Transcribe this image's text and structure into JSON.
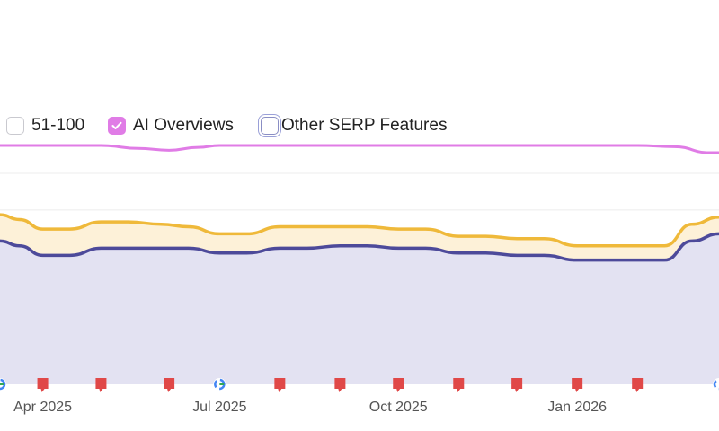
{
  "legend": {
    "items": [
      {
        "label": "51-100",
        "checked": false
      },
      {
        "label": "AI Overviews",
        "checked": true
      },
      {
        "label": "Other SERP Features",
        "checked": false,
        "focused": true
      }
    ]
  },
  "colors": {
    "top_line": "#efb93a",
    "top_fill": "#fdf1d8",
    "mid_line": "#4d4a9a",
    "mid_fill": "#e3e2f2",
    "ai_line": "#e07ce6",
    "gridline": "#ececec",
    "marker": "#e04848"
  },
  "chart_data": {
    "type": "area",
    "x_ticks": [
      "Apr 2025",
      "Jul 2025",
      "Oct 2025",
      "Jan 2026"
    ],
    "x_tick_dates": [
      "2025-04-01",
      "2025-07-01",
      "2025-10-01",
      "2026-01-01"
    ],
    "x_range": [
      "2025-03-10",
      "2026-03-15"
    ],
    "y_range": [
      0,
      100
    ],
    "gridlines": [
      27,
      47,
      65
    ],
    "series": [
      {
        "key": "top",
        "x": [
          "2025-03-10",
          "2025-03-20",
          "2025-04-01",
          "2025-04-15",
          "2025-05-01",
          "2025-05-15",
          "2025-06-01",
          "2025-06-15",
          "2025-07-01",
          "2025-07-15",
          "2025-08-01",
          "2025-08-15",
          "2025-09-01",
          "2025-09-15",
          "2025-10-01",
          "2025-10-15",
          "2025-11-01",
          "2025-11-15",
          "2025-12-01",
          "2025-12-15",
          "2026-01-01",
          "2026-01-15",
          "2026-02-01",
          "2026-02-15",
          "2026-03-01",
          "2026-03-15"
        ],
        "values": [
          29,
          31,
          35,
          35,
          32,
          32,
          33,
          34,
          37,
          37,
          34,
          34,
          34,
          34,
          35,
          35,
          38,
          38,
          39,
          39,
          42,
          42,
          42,
          42,
          33,
          30
        ]
      },
      {
        "key": "mid",
        "x": [
          "2025-03-10",
          "2025-03-20",
          "2025-04-01",
          "2025-04-15",
          "2025-05-01",
          "2025-05-15",
          "2025-06-01",
          "2025-06-15",
          "2025-07-01",
          "2025-07-15",
          "2025-08-01",
          "2025-08-15",
          "2025-09-01",
          "2025-09-15",
          "2025-10-01",
          "2025-10-15",
          "2025-11-01",
          "2025-11-15",
          "2025-12-01",
          "2025-12-15",
          "2026-01-01",
          "2026-01-15",
          "2026-02-01",
          "2026-02-15",
          "2026-03-01",
          "2026-03-15"
        ],
        "values": [
          40,
          42,
          46,
          46,
          43,
          43,
          43,
          43,
          45,
          45,
          43,
          43,
          42,
          42,
          43,
          43,
          45,
          45,
          46,
          46,
          48,
          48,
          48,
          48,
          40,
          37
        ]
      },
      {
        "key": "ai",
        "x": [
          "2025-03-10",
          "2025-04-01",
          "2025-05-01",
          "2025-05-20",
          "2025-06-05",
          "2025-06-20",
          "2025-07-01",
          "2025-08-01",
          "2025-09-01",
          "2025-10-01",
          "2025-11-01",
          "2025-12-01",
          "2026-01-01",
          "2026-02-01",
          "2026-02-20",
          "2026-03-10",
          "2026-03-15"
        ],
        "values": [
          0,
          0,
          0,
          1.2,
          2,
          0.8,
          0,
          0,
          0,
          0,
          0,
          0,
          0,
          0,
          0.5,
          3,
          3
        ]
      }
    ],
    "event_markers": [
      {
        "date": "2025-03-10",
        "type": "google"
      },
      {
        "date": "2025-04-01",
        "type": "flag"
      },
      {
        "date": "2025-05-01",
        "type": "flag"
      },
      {
        "date": "2025-06-05",
        "type": "flag"
      },
      {
        "date": "2025-07-01",
        "type": "google"
      },
      {
        "date": "2025-08-01",
        "type": "flag"
      },
      {
        "date": "2025-09-01",
        "type": "flag"
      },
      {
        "date": "2025-10-01",
        "type": "flag"
      },
      {
        "date": "2025-11-01",
        "type": "flag"
      },
      {
        "date": "2025-12-01",
        "type": "flag"
      },
      {
        "date": "2026-01-01",
        "type": "flag"
      },
      {
        "date": "2026-02-01",
        "type": "flag"
      },
      {
        "date": "2026-03-15",
        "type": "google"
      }
    ]
  }
}
